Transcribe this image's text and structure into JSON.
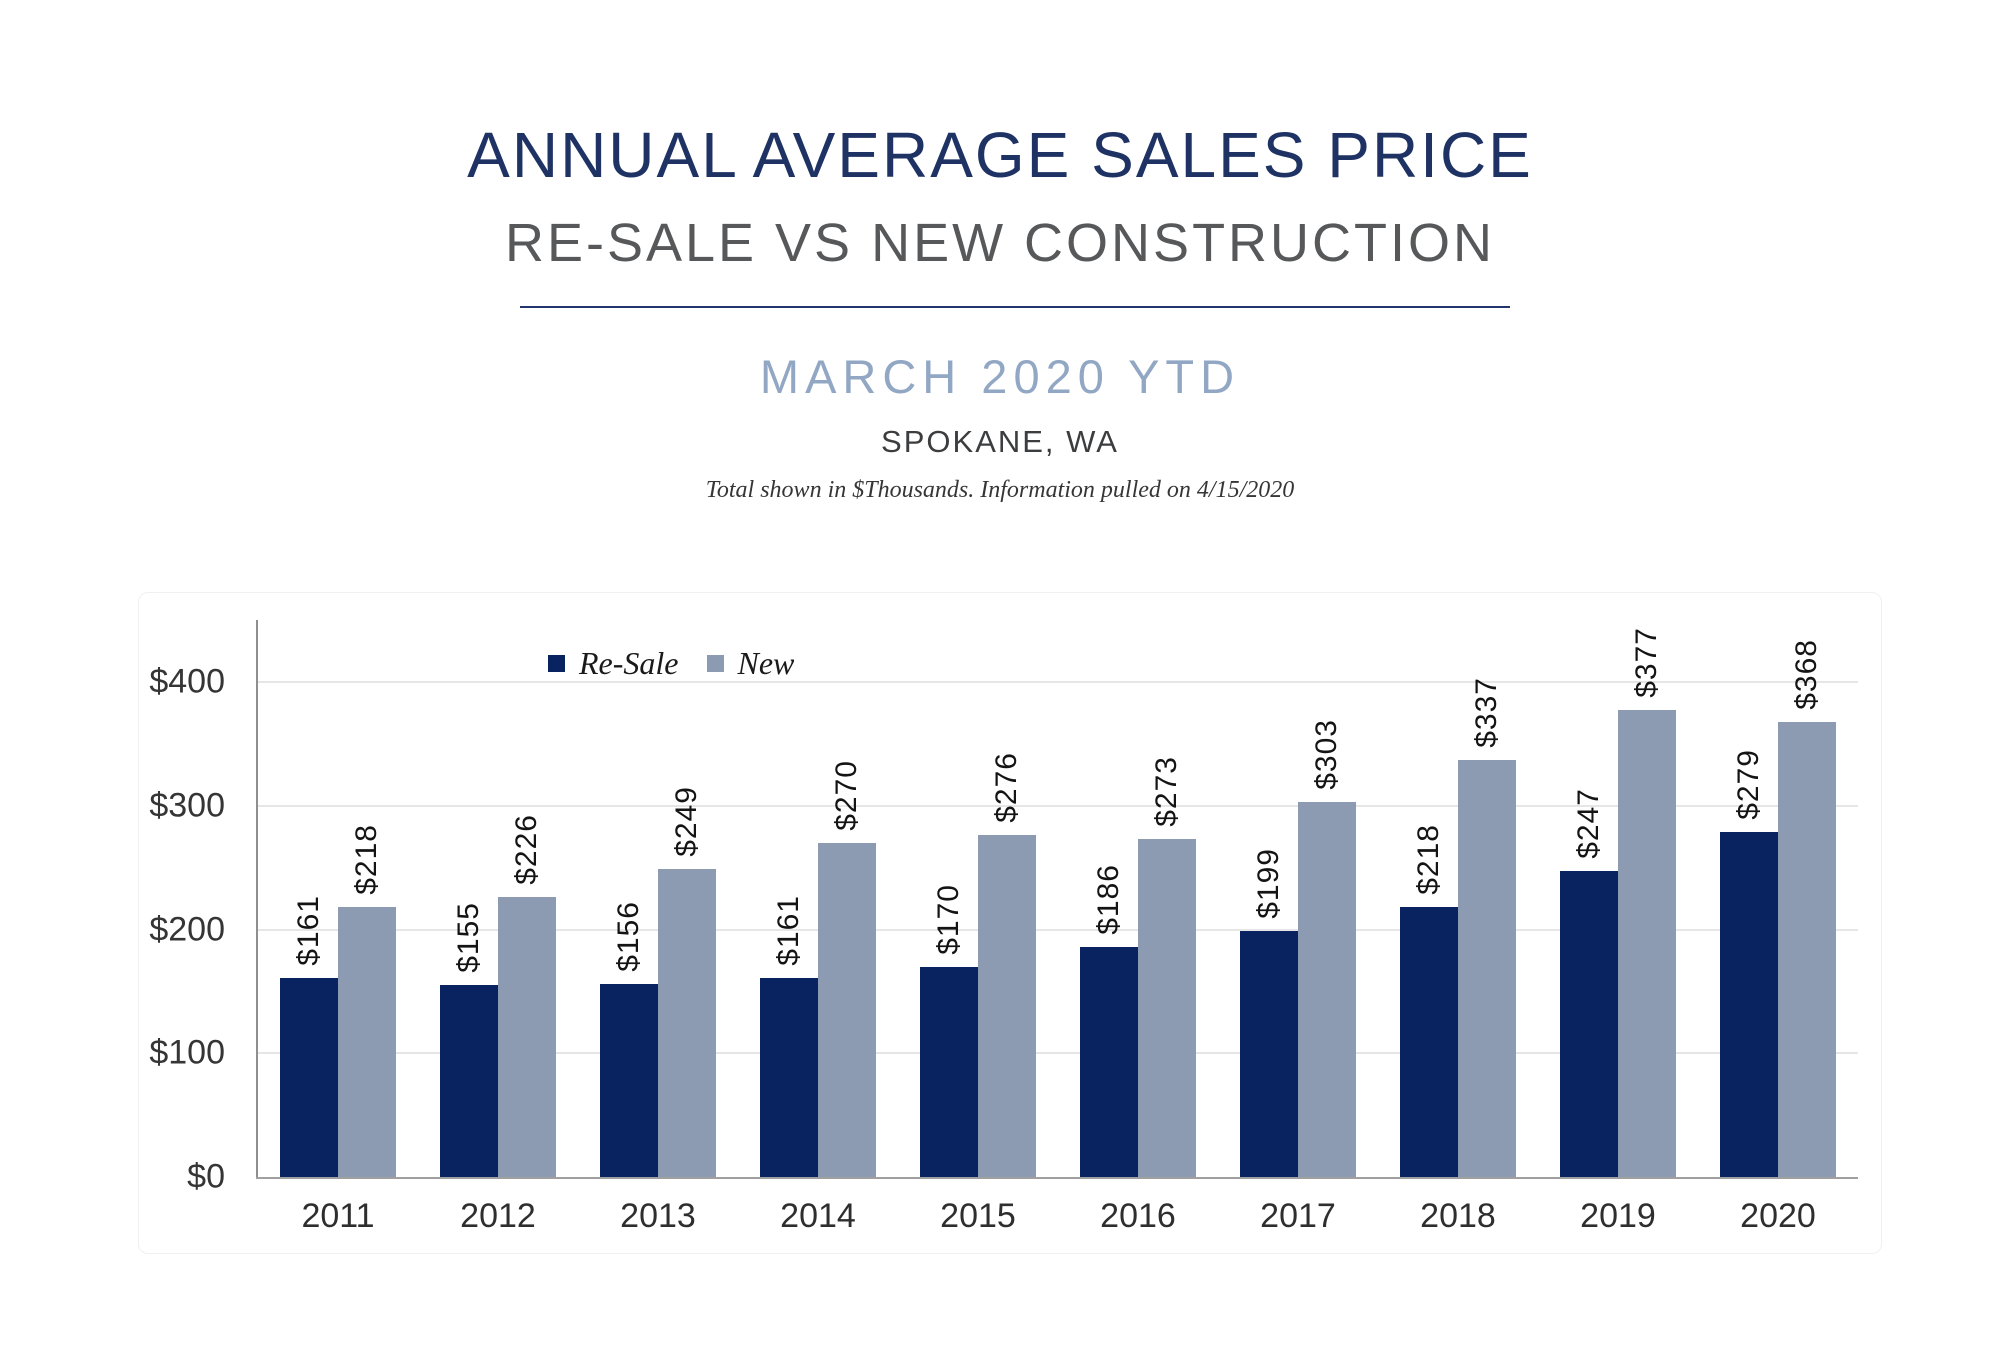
{
  "header": {
    "title": "ANNUAL AVERAGE SALES PRICE",
    "subtitle": "RE-SALE VS NEW CONSTRUCTION",
    "period": "MARCH 2020 YTD",
    "location": "SPOKANE, WA",
    "note": "Total shown in $Thousands. Information pulled on 4/15/2020"
  },
  "palette": {
    "title_navy": "#1e3264",
    "subtitle_gray": "#57585a",
    "period_blue": "#92a7c4",
    "divider_navy": "#23356d",
    "resale_navy": "#08235f",
    "new_grayblue": "#8c9bb1",
    "gridline": "#e6e6e6",
    "axis": "#8f8f8f"
  },
  "chart_data": {
    "type": "bar",
    "title": "Annual Average Sales Price Re-Sale vs New Construction, March 2020 YTD, Spokane WA ($Thousands)",
    "categories": [
      "2011",
      "2012",
      "2013",
      "2014",
      "2015",
      "2016",
      "2017",
      "2018",
      "2019",
      "2020"
    ],
    "series": [
      {
        "name": "Re-Sale",
        "color": "#08235f",
        "values": [
          161,
          155,
          156,
          161,
          170,
          186,
          199,
          218,
          247,
          279
        ]
      },
      {
        "name": "New",
        "color": "#8c9bb1",
        "values": [
          218,
          226,
          249,
          270,
          276,
          273,
          303,
          337,
          377,
          368
        ]
      }
    ],
    "value_prefix": "$",
    "data_labels": [
      "$161",
      "$155",
      "$156",
      "$161",
      "$170",
      "$186",
      "$199",
      "$218",
      "$247",
      "$279",
      "$218",
      "$226",
      "$249",
      "$270",
      "$276",
      "$273",
      "$303",
      "$337",
      "$377",
      "$368"
    ],
    "data_label_rotation": -90,
    "xlabel": "",
    "ylabel": "",
    "ytick_labels": [
      "$0",
      "$100",
      "$200",
      "$300",
      "$400"
    ],
    "ytick_values": [
      0,
      100,
      200,
      300,
      400
    ],
    "ylim": [
      0,
      450
    ],
    "grid": true,
    "legend_position": "inside-top-left"
  }
}
